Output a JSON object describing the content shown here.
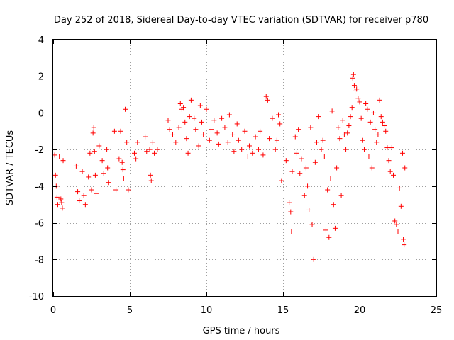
{
  "chart_data": {
    "type": "scatter",
    "title": "Day 252 of 2018, Sidereal Day-to-day VTEC variation (SDTVAR) for receiver p780",
    "xlabel": "GPS time / hours",
    "ylabel": "SDTVAR / TECUs",
    "xlim": [
      0,
      25
    ],
    "ylim": [
      -10,
      4
    ],
    "x_ticks": [
      0,
      5,
      10,
      15,
      20,
      25
    ],
    "y_ticks": [
      -10,
      -8,
      -6,
      -4,
      -2,
      0,
      2,
      4
    ],
    "x_tick_labels": [
      "0",
      "5",
      "10",
      "15",
      "20",
      "25"
    ],
    "y_tick_labels": [
      "-10",
      "-8",
      "-6",
      "-4",
      "-2",
      "0",
      "2",
      "4"
    ],
    "grid": true,
    "marker": "plus",
    "marker_color": "#ff0000",
    "series": [
      {
        "name": "SDTVAR",
        "points": [
          [
            0.1,
            -2.3
          ],
          [
            0.15,
            -3.4
          ],
          [
            0.2,
            -4.0
          ],
          [
            0.25,
            -4.6
          ],
          [
            0.3,
            -5.0
          ],
          [
            0.4,
            -2.4
          ],
          [
            0.5,
            -4.7
          ],
          [
            0.55,
            -4.9
          ],
          [
            0.6,
            -5.2
          ],
          [
            0.65,
            -2.6
          ],
          [
            1.5,
            -2.9
          ],
          [
            1.6,
            -4.3
          ],
          [
            1.7,
            -4.8
          ],
          [
            1.9,
            -3.2
          ],
          [
            2.0,
            -4.5
          ],
          [
            2.1,
            -5.0
          ],
          [
            2.3,
            -3.5
          ],
          [
            2.4,
            -2.2
          ],
          [
            2.5,
            -4.2
          ],
          [
            2.6,
            -1.1
          ],
          [
            2.65,
            -0.8
          ],
          [
            2.7,
            -2.1
          ],
          [
            2.75,
            -3.4
          ],
          [
            2.8,
            -4.4
          ],
          [
            3.0,
            -1.8
          ],
          [
            3.2,
            -2.6
          ],
          [
            3.3,
            -3.3
          ],
          [
            3.5,
            -2.0
          ],
          [
            3.55,
            -3.0
          ],
          [
            3.6,
            -3.8
          ],
          [
            4.0,
            -1.0
          ],
          [
            4.1,
            -4.2
          ],
          [
            4.3,
            -2.5
          ],
          [
            4.4,
            -1.0
          ],
          [
            4.5,
            -2.7
          ],
          [
            4.55,
            -3.1
          ],
          [
            4.6,
            -3.6
          ],
          [
            4.7,
            0.2
          ],
          [
            4.8,
            -1.6
          ],
          [
            4.9,
            -4.2
          ],
          [
            5.3,
            -2.2
          ],
          [
            5.4,
            -2.5
          ],
          [
            5.5,
            -1.6
          ],
          [
            6.0,
            -1.3
          ],
          [
            6.1,
            -2.1
          ],
          [
            6.3,
            -2.0
          ],
          [
            6.35,
            -3.4
          ],
          [
            6.4,
            -3.7
          ],
          [
            6.5,
            -1.6
          ],
          [
            6.6,
            -2.2
          ],
          [
            6.8,
            -2.0
          ],
          [
            7.5,
            -0.4
          ],
          [
            7.6,
            -0.9
          ],
          [
            7.8,
            -1.2
          ],
          [
            8.0,
            -1.6
          ],
          [
            8.2,
            -0.8
          ],
          [
            8.3,
            0.5
          ],
          [
            8.4,
            0.2
          ],
          [
            8.5,
            0.3
          ],
          [
            8.6,
            -0.5
          ],
          [
            8.7,
            -1.4
          ],
          [
            8.8,
            -2.2
          ],
          [
            8.9,
            -0.2
          ],
          [
            9.0,
            0.7
          ],
          [
            9.2,
            -0.3
          ],
          [
            9.3,
            -0.9
          ],
          [
            9.5,
            -1.8
          ],
          [
            9.6,
            0.4
          ],
          [
            9.7,
            -0.5
          ],
          [
            9.8,
            -1.2
          ],
          [
            10.0,
            0.2
          ],
          [
            10.2,
            -1.5
          ],
          [
            10.3,
            -0.9
          ],
          [
            10.5,
            -0.4
          ],
          [
            10.7,
            -1.1
          ],
          [
            10.8,
            -1.7
          ],
          [
            11.0,
            -0.3
          ],
          [
            11.2,
            -0.8
          ],
          [
            11.4,
            -1.6
          ],
          [
            11.5,
            -0.1
          ],
          [
            11.7,
            -1.2
          ],
          [
            11.8,
            -2.1
          ],
          [
            12.0,
            -0.6
          ],
          [
            12.1,
            -1.5
          ],
          [
            12.3,
            -2.0
          ],
          [
            12.5,
            -1.0
          ],
          [
            12.7,
            -2.4
          ],
          [
            12.8,
            -1.8
          ],
          [
            13.0,
            -2.2
          ],
          [
            13.2,
            -1.3
          ],
          [
            13.4,
            -2.0
          ],
          [
            13.5,
            -1.0
          ],
          [
            13.7,
            -2.3
          ],
          [
            13.9,
            0.9
          ],
          [
            14.0,
            0.7
          ],
          [
            14.1,
            -1.4
          ],
          [
            14.3,
            -0.3
          ],
          [
            14.5,
            -2.0
          ],
          [
            14.6,
            -1.5
          ],
          [
            14.7,
            -0.1
          ],
          [
            14.8,
            -0.6
          ],
          [
            14.9,
            -3.7
          ],
          [
            15.2,
            -2.6
          ],
          [
            15.4,
            -4.9
          ],
          [
            15.5,
            -5.4
          ],
          [
            15.55,
            -6.5
          ],
          [
            15.6,
            -3.2
          ],
          [
            15.8,
            -1.3
          ],
          [
            15.9,
            -2.2
          ],
          [
            16.0,
            -0.9
          ],
          [
            16.1,
            -3.3
          ],
          [
            16.2,
            -2.5
          ],
          [
            16.4,
            -4.5
          ],
          [
            16.5,
            -3.0
          ],
          [
            16.6,
            -4.0
          ],
          [
            16.7,
            -5.3
          ],
          [
            16.8,
            -0.8
          ],
          [
            16.9,
            -6.1
          ],
          [
            17.0,
            -8.0
          ],
          [
            17.1,
            -2.7
          ],
          [
            17.2,
            -1.6
          ],
          [
            17.3,
            -0.2
          ],
          [
            17.5,
            -2.0
          ],
          [
            17.6,
            -1.5
          ],
          [
            17.7,
            -2.4
          ],
          [
            17.8,
            -6.4
          ],
          [
            17.9,
            -4.2
          ],
          [
            18.0,
            -6.8
          ],
          [
            18.1,
            -3.6
          ],
          [
            18.2,
            0.1
          ],
          [
            18.3,
            -5.0
          ],
          [
            18.4,
            -6.3
          ],
          [
            18.5,
            -3.0
          ],
          [
            18.6,
            -0.8
          ],
          [
            18.7,
            -1.4
          ],
          [
            18.8,
            -4.5
          ],
          [
            18.9,
            -0.4
          ],
          [
            19.0,
            -1.2
          ],
          [
            19.1,
            -2.0
          ],
          [
            19.2,
            -1.1
          ],
          [
            19.3,
            -0.7
          ],
          [
            19.4,
            -0.2
          ],
          [
            19.5,
            0.3
          ],
          [
            19.55,
            1.9
          ],
          [
            19.6,
            2.1
          ],
          [
            19.65,
            1.5
          ],
          [
            19.7,
            1.2
          ],
          [
            19.8,
            1.3
          ],
          [
            19.9,
            0.8
          ],
          [
            20.0,
            0.6
          ],
          [
            20.1,
            -0.3
          ],
          [
            20.2,
            -1.5
          ],
          [
            20.3,
            -2.0
          ],
          [
            20.4,
            0.5
          ],
          [
            20.5,
            0.2
          ],
          [
            20.6,
            -2.4
          ],
          [
            20.7,
            -0.5
          ],
          [
            20.8,
            -3.0
          ],
          [
            20.9,
            0.0
          ],
          [
            21.0,
            -0.9
          ],
          [
            21.1,
            -1.6
          ],
          [
            21.2,
            -1.2
          ],
          [
            21.3,
            0.7
          ],
          [
            21.4,
            -0.2
          ],
          [
            21.5,
            -0.5
          ],
          [
            21.6,
            -0.7
          ],
          [
            21.7,
            -1.0
          ],
          [
            21.8,
            -1.9
          ],
          [
            21.9,
            -2.6
          ],
          [
            22.0,
            -3.2
          ],
          [
            22.1,
            -1.9
          ],
          [
            22.2,
            -3.4
          ],
          [
            22.3,
            -5.9
          ],
          [
            22.4,
            -6.1
          ],
          [
            22.5,
            -6.5
          ],
          [
            22.6,
            -4.1
          ],
          [
            22.7,
            -5.1
          ],
          [
            22.8,
            -2.2
          ],
          [
            22.85,
            -6.9
          ],
          [
            22.9,
            -7.2
          ],
          [
            22.95,
            -3.0
          ]
        ]
      }
    ]
  }
}
